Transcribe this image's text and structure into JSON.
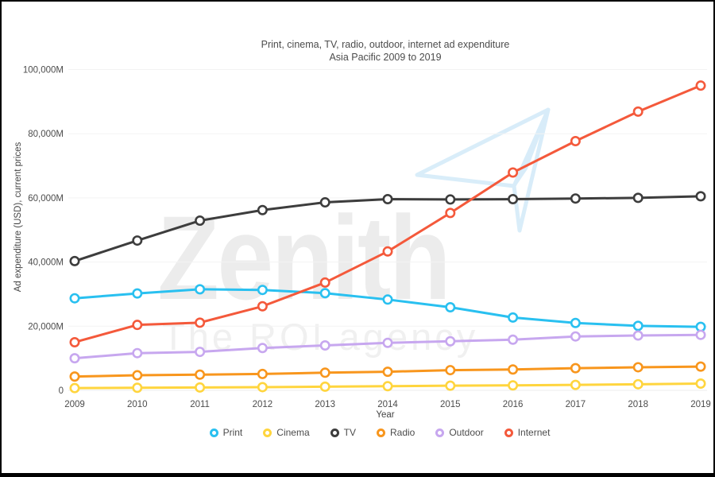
{
  "chart": {
    "watermark": {
      "primary": "Zenith",
      "secondary": "The ROI agency",
      "logo_icon": "paper-plane-icon",
      "text_color": "#ececec",
      "logo_color": "#cfe8f8"
    }
  },
  "chart_data": {
    "type": "line",
    "title": "Print, cinema, TV, radio, outdoor, internet ad expenditure",
    "subtitle": "Asia Pacific 2009 to 2019",
    "xlabel": "Year",
    "ylabel": "Ad expenditure (USD), current prices",
    "x": [
      2009,
      2010,
      2011,
      2012,
      2013,
      2014,
      2015,
      2016,
      2017,
      2018,
      2019
    ],
    "ylim": [
      0,
      100000
    ],
    "y_ticks": [
      {
        "value": 0,
        "label": "0"
      },
      {
        "value": 20000,
        "label": "20,000M"
      },
      {
        "value": 40000,
        "label": "40,000M"
      },
      {
        "value": 60000,
        "label": "60,000M"
      },
      {
        "value": 80000,
        "label": "80,000M"
      },
      {
        "value": 100000,
        "label": "100,000M"
      }
    ],
    "grid": "horizontal",
    "legend_position": "bottom",
    "marker_style": "open-circle",
    "series": [
      {
        "name": "Print",
        "color": "#29c0f0",
        "values": [
          28700,
          30200,
          31500,
          31300,
          30300,
          28300,
          25900,
          22700,
          21000,
          20100,
          19800
        ]
      },
      {
        "name": "Cinema",
        "color": "#ffd53e",
        "values": [
          700,
          800,
          900,
          1000,
          1150,
          1300,
          1450,
          1550,
          1700,
          1900,
          2100
        ]
      },
      {
        "name": "TV",
        "color": "#3d3d3d",
        "values": [
          40300,
          46700,
          52900,
          56200,
          58600,
          59600,
          59500,
          59600,
          59800,
          60000,
          60500
        ]
      },
      {
        "name": "Radio",
        "color": "#f8961d",
        "values": [
          4300,
          4700,
          4900,
          5100,
          5500,
          5800,
          6300,
          6500,
          6900,
          7200,
          7400
        ]
      },
      {
        "name": "Outdoor",
        "color": "#c7a7ef",
        "values": [
          10000,
          11600,
          12000,
          13200,
          14000,
          14800,
          15300,
          15800,
          16800,
          17100,
          17300
        ]
      },
      {
        "name": "Internet",
        "color": "#f4593b",
        "values": [
          15000,
          20400,
          21100,
          26200,
          33600,
          43300,
          55300,
          67900,
          77700,
          86900,
          95000
        ]
      }
    ],
    "units": "USD millions"
  }
}
